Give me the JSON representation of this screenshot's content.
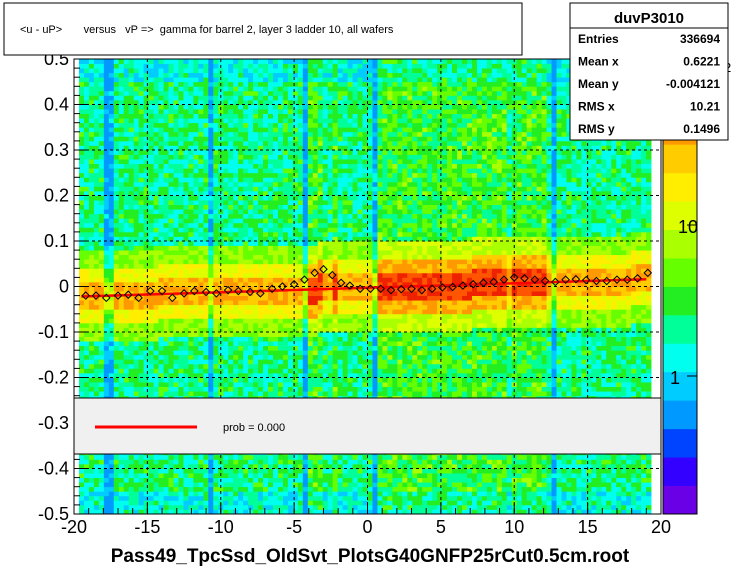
{
  "chart_data": {
    "type": "heatmap",
    "title": "<u - uP>       versus   vP =>  gamma for barrel 2, layer 3 ladder 10, all wafers",
    "xlim": [
      -20,
      20
    ],
    "ylim": [
      -0.5,
      0.5
    ],
    "x_ticks": [
      "-20",
      "-15",
      "-10",
      "-5",
      "0",
      "5",
      "10",
      "15",
      "20"
    ],
    "y_ticks": [
      "-0.5",
      "-0.4",
      "-0.3",
      "-0.2",
      "-0.1",
      "0",
      "0.1",
      "0.2",
      "0.3",
      "0.4",
      "0.5"
    ],
    "grid": true,
    "colorbar": {
      "scale": "log",
      "labels": [
        "1",
        "10",
        "10"
      ],
      "exponent": "2"
    },
    "profile_points": {
      "x": [
        -19.2,
        -18.5,
        -17.8,
        -17.0,
        -16.3,
        -15.6,
        -14.8,
        -14.0,
        -13.3,
        -12.5,
        -11.8,
        -11.0,
        -10.3,
        -9.5,
        -8.8,
        -8.0,
        -7.3,
        -6.5,
        -5.8,
        -5.0,
        -4.3,
        -3.6,
        -3.0,
        -2.4,
        -1.8,
        -1.2,
        -0.5,
        0.2,
        0.9,
        1.6,
        2.3,
        3.0,
        3.7,
        4.4,
        5.1,
        5.8,
        6.5,
        7.2,
        7.9,
        8.6,
        9.3,
        10.0,
        10.7,
        11.4,
        12.1,
        12.8,
        13.5,
        14.2,
        14.9,
        15.6,
        16.3,
        17.0,
        17.7,
        18.4,
        19.1
      ],
      "y": [
        -0.02,
        -0.02,
        -0.025,
        -0.02,
        -0.018,
        -0.025,
        -0.01,
        -0.01,
        -0.025,
        -0.015,
        -0.01,
        -0.012,
        -0.015,
        -0.008,
        -0.01,
        -0.012,
        -0.015,
        -0.005,
        0.0,
        0.005,
        0.015,
        0.03,
        0.038,
        0.025,
        0.008,
        0.002,
        -0.005,
        -0.005,
        -0.005,
        -0.008,
        -0.006,
        -0.005,
        -0.008,
        -0.005,
        -0.002,
        -0.001,
        0.002,
        0.005,
        0.008,
        0.01,
        0.015,
        0.02,
        0.018,
        0.015,
        0.012,
        0.01,
        0.015,
        0.016,
        0.014,
        0.012,
        0.012,
        0.015,
        0.015,
        0.018,
        0.03
      ]
    },
    "fit_line": {
      "x": [
        -19.5,
        19.0
      ],
      "y": [
        -0.022,
        0.016
      ]
    }
  },
  "stats": {
    "name": "duvP3010",
    "rows": [
      {
        "label": "Entries",
        "value": "336694"
      },
      {
        "label": "Mean x",
        "value": "0.6221"
      },
      {
        "label": "Mean y",
        "value": "-0.004121"
      },
      {
        "label": "RMS x",
        "value": "10.21"
      },
      {
        "label": "RMS y",
        "value": "0.1496"
      }
    ]
  },
  "legend": {
    "text": "prob = 0.000"
  },
  "footer": "Pass49_TpcSsd_OldSvt_PlotsG40GNFP25rCut0.5cm.root",
  "colors": {
    "fit_line": "#ff0000",
    "background_frame": "#ffffff"
  }
}
